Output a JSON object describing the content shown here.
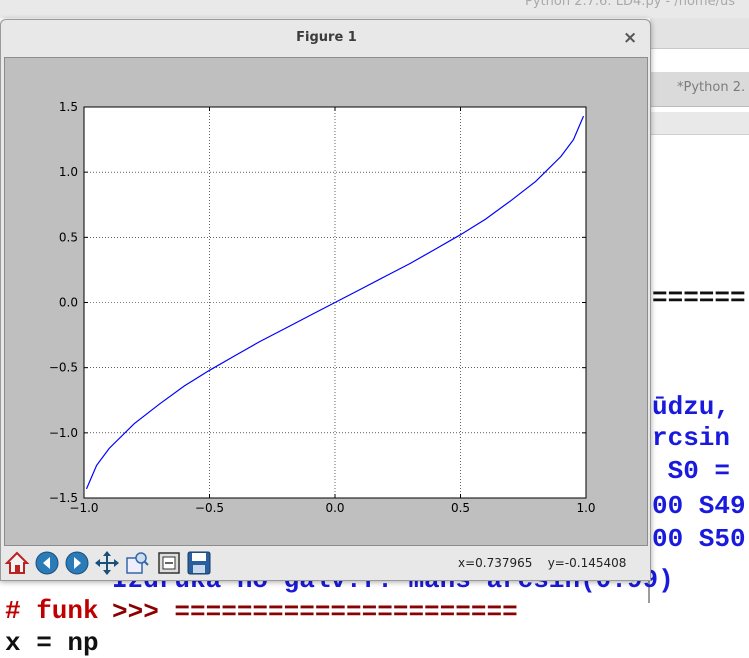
{
  "background_window": {
    "title": "Python 2.7.6: LD4.py - /home/us",
    "tab_label": "*Python 2.",
    "shell_separator_top": "======",
    "text_lines": [
      "ūdzu,",
      "rcsin",
      " S0 =",
      "00 S49",
      "00 S50"
    ],
    "print_line": "Izdruka no galv.f. mans arcsin(0.99)",
    "prompt_line": ">>> ======================",
    "left_lines": [
      ". .",
      "# funk",
      "x = np"
    ]
  },
  "figure_window": {
    "title": "Figure 1",
    "close_label": "×",
    "toolbar": [
      {
        "name": "home-icon"
      },
      {
        "name": "back-icon"
      },
      {
        "name": "forward-icon"
      },
      {
        "name": "pan-icon"
      },
      {
        "name": "zoom-icon"
      },
      {
        "name": "subplots-icon"
      },
      {
        "name": "save-icon"
      }
    ],
    "status": {
      "x": "x=0.737965",
      "y": "y=-0.145408"
    }
  },
  "chart_data": {
    "type": "line",
    "title": "",
    "xlabel": "",
    "ylabel": "",
    "xlim": [
      -1.0,
      1.0
    ],
    "ylim": [
      -1.5,
      1.5
    ],
    "grid": true,
    "xticks": [
      "−1.0",
      "−0.5",
      "0.0",
      "0.5",
      "1.0"
    ],
    "yticks": [
      "1.5",
      "1.0",
      "0.5",
      "0.0",
      "−0.5",
      "−1.0",
      "−1.5"
    ],
    "series": [
      {
        "color": "#0000ff",
        "x": [
          -0.99,
          -0.95,
          -0.9,
          -0.8,
          -0.7,
          -0.6,
          -0.5,
          -0.4,
          -0.3,
          -0.2,
          -0.1,
          0.0,
          0.1,
          0.2,
          0.3,
          0.4,
          0.5,
          0.6,
          0.7,
          0.8,
          0.9,
          0.95,
          0.99
        ],
        "y": [
          -1.43,
          -1.25,
          -1.12,
          -0.93,
          -0.78,
          -0.64,
          -0.52,
          -0.41,
          -0.3,
          -0.2,
          -0.1,
          0.0,
          0.1,
          0.2,
          0.3,
          0.41,
          0.52,
          0.64,
          0.78,
          0.93,
          1.12,
          1.25,
          1.43
        ]
      }
    ]
  }
}
